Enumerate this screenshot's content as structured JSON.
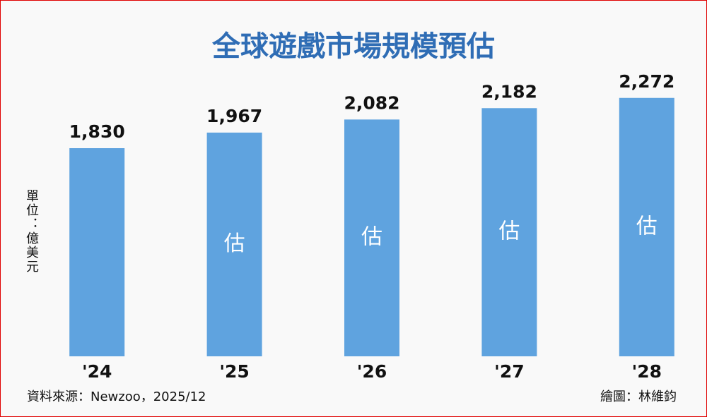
{
  "chart_data": {
    "type": "bar",
    "title": "全球遊戲市場規模預估",
    "unit_label": "單位：億美元",
    "categories": [
      "'24",
      "'25",
      "'26",
      "'27",
      "'28"
    ],
    "values": [
      1830,
      1967,
      2082,
      2182,
      2272
    ],
    "value_labels": [
      "1,830",
      "1,967",
      "2,082",
      "2,182",
      "2,272"
    ],
    "bar_annotations": [
      null,
      "估",
      "估",
      "估",
      "估"
    ],
    "color": "#5fa3df",
    "ylim": [
      0,
      2500
    ],
    "source": "資料來源：Newzoo，2025/12",
    "credit": "繪圖：林維鈞"
  }
}
